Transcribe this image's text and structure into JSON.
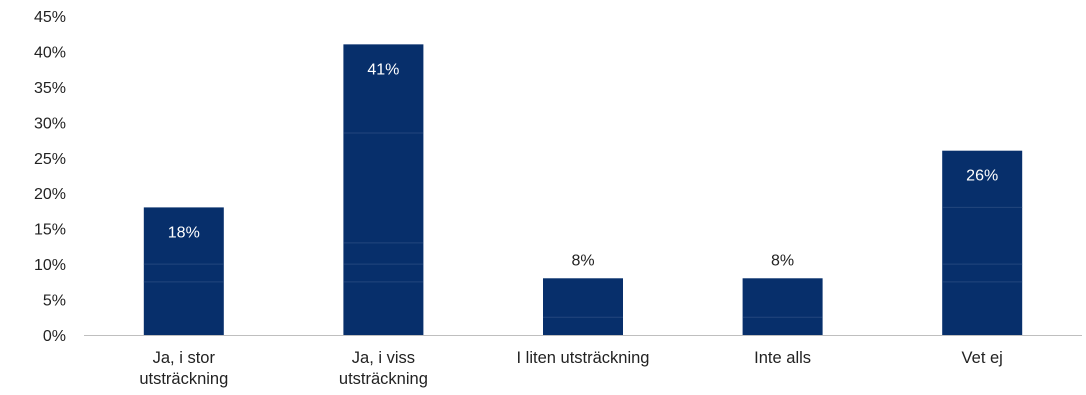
{
  "chart_data": {
    "type": "bar",
    "title": "",
    "xlabel": "",
    "ylabel": "",
    "categories": [
      [
        "Ja, i stor",
        "utsträckning"
      ],
      [
        "Ja, i viss",
        "utsträckning"
      ],
      [
        "I liten utsträckning"
      ],
      [
        "Inte alls"
      ],
      [
        "Vet ej"
      ]
    ],
    "values": [
      18,
      41,
      8,
      8,
      26
    ],
    "data_labels": [
      "18%",
      "41%",
      "8%",
      "8%",
      "26%"
    ],
    "ylim": [
      0,
      45
    ],
    "yticks": [
      0,
      5,
      10,
      15,
      20,
      25,
      30,
      35,
      40,
      45
    ],
    "ytick_labels": [
      "0%",
      "5%",
      "10%",
      "15%",
      "20%",
      "25%",
      "30%",
      "35%",
      "40%",
      "45%"
    ],
    "grid": false,
    "legend": "none",
    "colors": {
      "bar": "#072f6b",
      "bar_seam": "#3a5a8c",
      "label_inside": "#ffffff",
      "label_outside": "#222222",
      "axis": "#bfbfbf",
      "text": "#222222"
    }
  }
}
